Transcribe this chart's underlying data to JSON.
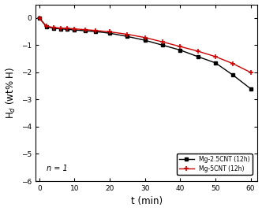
{
  "title": "",
  "xlabel": "t (min)",
  "ylabel": "H$_d$ (wt% H)",
  "xlim": [
    -1,
    62
  ],
  "ylim": [
    -6,
    0.5
  ],
  "yticks": [
    0,
    -1,
    -2,
    -3,
    -4,
    -5,
    -6
  ],
  "xticks": [
    0,
    10,
    20,
    30,
    40,
    50,
    60
  ],
  "annotation": "n = 1",
  "series": [
    {
      "label": "Mg-2.5CNT (12h)",
      "color": "#000000",
      "marker": "s",
      "markersize": 3.5,
      "linewidth": 1.0,
      "t": [
        0,
        2,
        4,
        6,
        8,
        10,
        13,
        16,
        20,
        25,
        30,
        35,
        40,
        45,
        50,
        55,
        60
      ],
      "Hd": [
        0.0,
        -0.32,
        -0.38,
        -0.4,
        -0.42,
        -0.44,
        -0.47,
        -0.5,
        -0.56,
        -0.68,
        -0.82,
        -1.0,
        -1.18,
        -1.42,
        -1.65,
        -2.1,
        -2.6
      ]
    },
    {
      "label": "Mg-5CNT (12h)",
      "color": "#cc0000",
      "marker": "+",
      "markersize": 5,
      "markeredgewidth": 1.2,
      "linewidth": 1.0,
      "t": [
        0,
        2,
        4,
        6,
        8,
        10,
        13,
        16,
        20,
        25,
        30,
        35,
        40,
        45,
        50,
        55,
        60
      ],
      "Hd": [
        0.0,
        -0.3,
        -0.35,
        -0.37,
        -0.38,
        -0.4,
        -0.43,
        -0.46,
        -0.51,
        -0.6,
        -0.72,
        -0.88,
        -1.05,
        -1.22,
        -1.42,
        -1.68,
        -2.0
      ]
    }
  ],
  "background_color": "#ffffff",
  "tick_fontsize": 6.5,
  "label_fontsize": 8.5,
  "legend_fontsize": 5.5
}
